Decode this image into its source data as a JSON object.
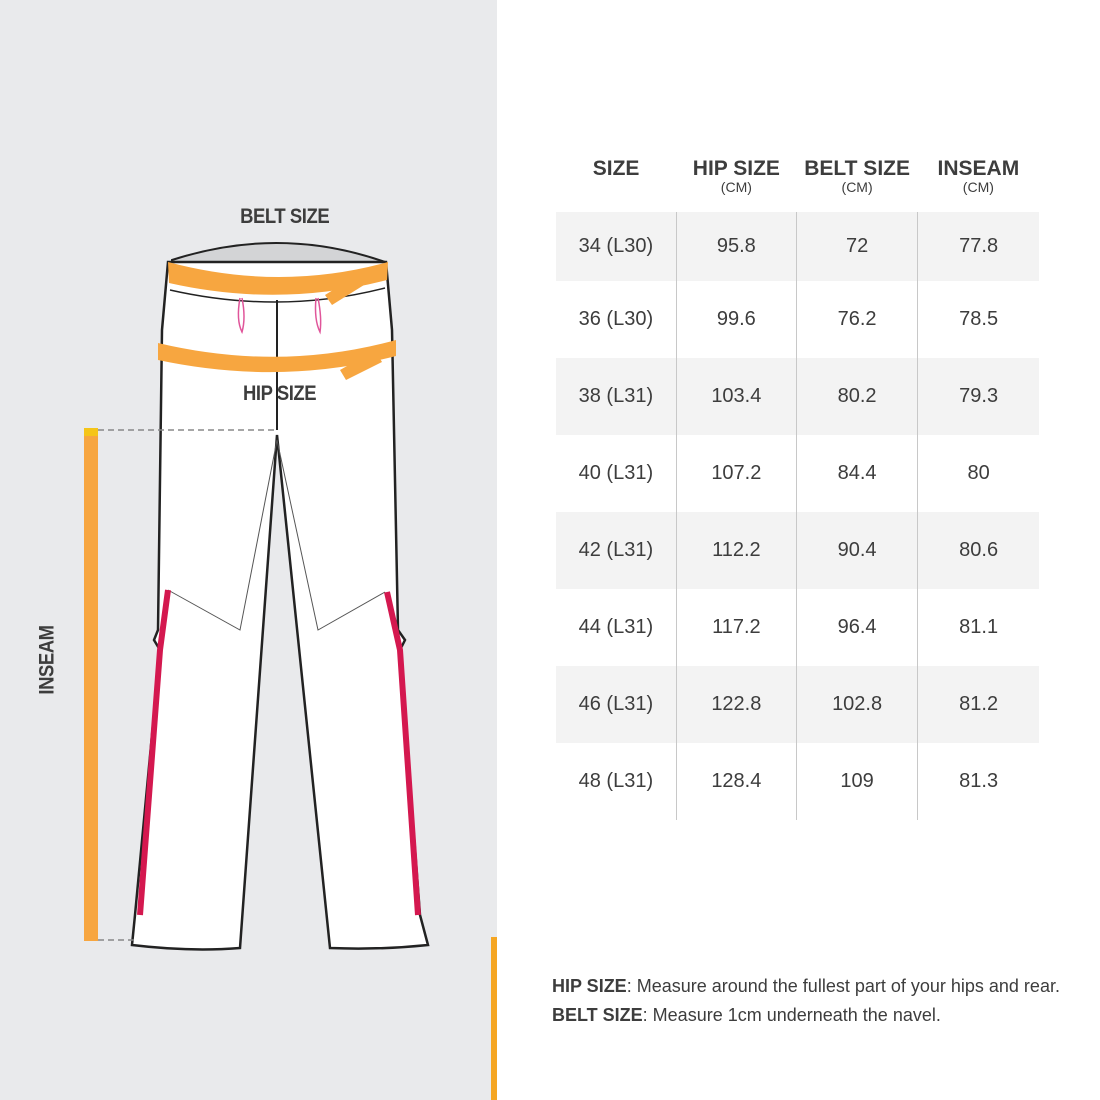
{
  "diagram": {
    "belt_label": "BELT SIZE",
    "hip_label": "HIP SIZE",
    "inseam_label": "INSEAM"
  },
  "colors": {
    "accent": "#f5a623",
    "tape": "#f7a640",
    "stripe": "#d4184f",
    "panel": "#e9eaec"
  },
  "table": {
    "headers": [
      {
        "title": "SIZE",
        "unit": ""
      },
      {
        "title": "HIP SIZE",
        "unit": "(CM)"
      },
      {
        "title": "BELT SIZE",
        "unit": "(CM)"
      },
      {
        "title": "INSEAM",
        "unit": "(CM)"
      }
    ],
    "rows": [
      [
        "34 (L30)",
        "95.8",
        "72",
        "77.8"
      ],
      [
        "36 (L30)",
        "99.6",
        "76.2",
        "78.5"
      ],
      [
        "38 (L31)",
        "103.4",
        "80.2",
        "79.3"
      ],
      [
        "40 (L31)",
        "107.2",
        "84.4",
        "80"
      ],
      [
        "42 (L31)",
        "112.2",
        "90.4",
        "80.6"
      ],
      [
        "44 (L31)",
        "117.2",
        "96.4",
        "81.1"
      ],
      [
        "46 (L31)",
        "122.8",
        "102.8",
        "81.2"
      ],
      [
        "48 (L31)",
        "128.4",
        "109",
        "81.3"
      ]
    ]
  },
  "notes": [
    {
      "term": "HIP SIZE",
      "text": ": Measure around the fullest part of your hips and rear."
    },
    {
      "term": "BELT SIZE",
      "text": ": Measure 1cm underneath the navel."
    }
  ]
}
